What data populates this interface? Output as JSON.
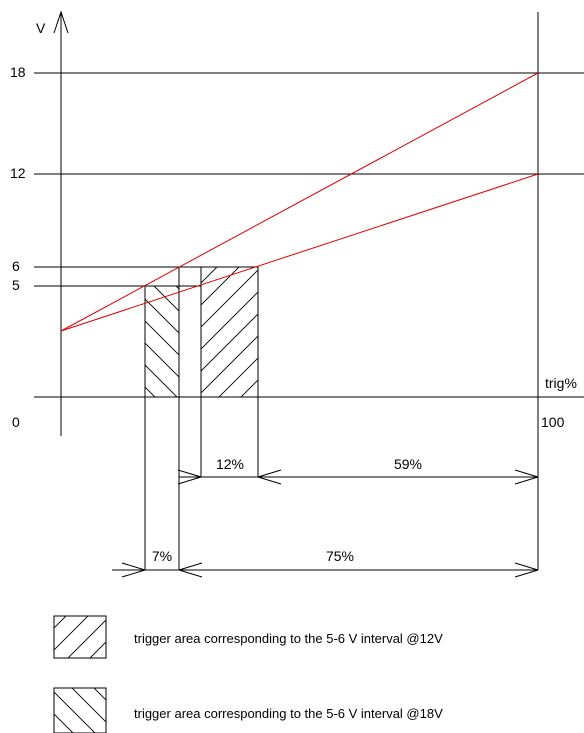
{
  "axes": {
    "y_label": "V",
    "x_label": "trig%",
    "y_ticks": [
      "18",
      "12",
      "6",
      "5",
      "0"
    ],
    "x_end_label": "100"
  },
  "lines": {
    "color": "#e00000",
    "start_voltage": 3.8,
    "end_12v": 12,
    "end_18v": 18
  },
  "dimensions": {
    "pct_12": "12%",
    "pct_59": "59%",
    "pct_7": "7%",
    "pct_75": "75%"
  },
  "legend": {
    "item_12v": "trigger area corresponding to the 5-6 V interval @12V",
    "item_18v": "trigger area corresponding to the 5-6 V interval @18V"
  }
}
